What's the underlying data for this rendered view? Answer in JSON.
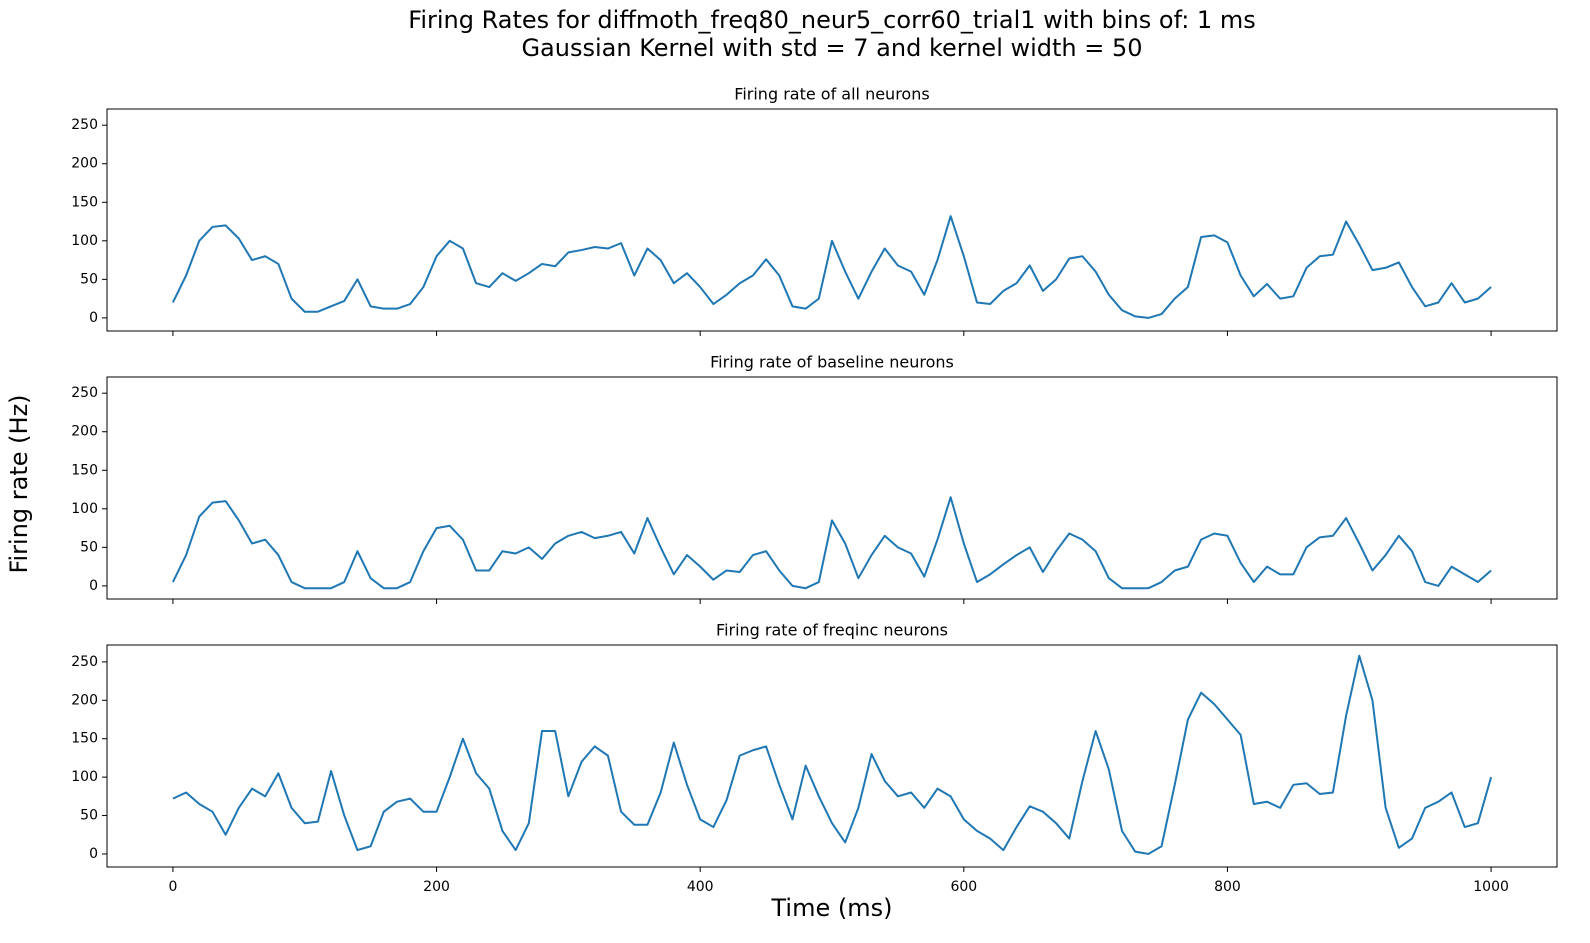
{
  "title": "Firing Rates for diffmoth_freq80_neur5_corr60_trial1 with bins of: 1 ms",
  "subtitle": "Gaussian Kernel with std = 7 and kernel width = 50",
  "xlabel": "Time (ms)",
  "ylabel": "Firing rate (Hz)",
  "chart_data": [
    {
      "type": "line",
      "title": "Firing rate of all neurons",
      "color": "#1f77b4",
      "x": [
        0,
        10,
        20,
        30,
        40,
        50,
        60,
        70,
        80,
        90,
        100,
        110,
        120,
        130,
        140,
        150,
        160,
        170,
        180,
        190,
        200,
        210,
        220,
        230,
        240,
        250,
        260,
        270,
        280,
        290,
        300,
        310,
        320,
        330,
        340,
        350,
        360,
        370,
        380,
        390,
        400,
        410,
        420,
        430,
        440,
        450,
        460,
        470,
        480,
        490,
        500,
        510,
        520,
        530,
        540,
        550,
        560,
        570,
        580,
        590,
        600,
        610,
        620,
        630,
        640,
        650,
        660,
        670,
        680,
        690,
        700,
        710,
        720,
        730,
        740,
        750,
        760,
        770,
        780,
        790,
        800,
        810,
        820,
        830,
        840,
        850,
        860,
        870,
        880,
        890,
        900,
        910,
        920,
        930,
        940,
        950,
        960,
        970,
        980,
        990,
        1000
      ],
      "values": [
        20,
        55,
        100,
        118,
        120,
        103,
        75,
        80,
        70,
        25,
        8,
        8,
        15,
        22,
        50,
        15,
        12,
        12,
        18,
        40,
        80,
        100,
        90,
        45,
        40,
        58,
        48,
        58,
        70,
        67,
        85,
        88,
        92,
        90,
        97,
        55,
        90,
        75,
        45,
        58,
        40,
        18,
        30,
        45,
        55,
        76,
        55,
        15,
        12,
        25,
        100,
        60,
        25,
        60,
        90,
        68,
        60,
        30,
        75,
        132,
        80,
        20,
        18,
        35,
        45,
        68,
        35,
        50,
        77,
        80,
        60,
        30,
        10,
        2,
        0,
        5,
        25,
        40,
        105,
        107,
        98,
        55,
        28,
        44,
        25,
        28,
        65,
        80,
        82,
        125,
        95,
        62,
        65,
        72,
        40,
        15,
        20,
        45,
        20,
        25,
        40
      ],
      "xlim": [
        -50,
        1050
      ],
      "ylim": [
        -17,
        271
      ],
      "xticks": [
        0,
        200,
        400,
        600,
        800,
        1000
      ],
      "yticks": [
        0,
        50,
        100,
        150,
        200,
        250
      ]
    },
    {
      "type": "line",
      "title": "Firing rate of baseline neurons",
      "color": "#1f77b4",
      "x": [
        0,
        10,
        20,
        30,
        40,
        50,
        60,
        70,
        80,
        90,
        100,
        110,
        120,
        130,
        140,
        150,
        160,
        170,
        180,
        190,
        200,
        210,
        220,
        230,
        240,
        250,
        260,
        270,
        280,
        290,
        300,
        310,
        320,
        330,
        340,
        350,
        360,
        370,
        380,
        390,
        400,
        410,
        420,
        430,
        440,
        450,
        460,
        470,
        480,
        490,
        500,
        510,
        520,
        530,
        540,
        550,
        560,
        570,
        580,
        590,
        600,
        610,
        620,
        630,
        640,
        650,
        660,
        670,
        680,
        690,
        700,
        710,
        720,
        730,
        740,
        750,
        760,
        770,
        780,
        790,
        800,
        810,
        820,
        830,
        840,
        850,
        860,
        870,
        880,
        890,
        900,
        910,
        920,
        930,
        940,
        950,
        960,
        970,
        980,
        990,
        1000
      ],
      "values": [
        5,
        40,
        90,
        108,
        110,
        85,
        55,
        60,
        40,
        5,
        -3,
        -3,
        -3,
        5,
        45,
        10,
        -3,
        -3,
        5,
        45,
        75,
        78,
        60,
        20,
        20,
        45,
        42,
        50,
        35,
        55,
        65,
        70,
        62,
        65,
        70,
        42,
        88,
        50,
        15,
        40,
        25,
        8,
        20,
        18,
        40,
        45,
        20,
        0,
        -3,
        5,
        85,
        55,
        10,
        40,
        65,
        50,
        42,
        12,
        60,
        115,
        55,
        5,
        15,
        28,
        40,
        50,
        18,
        45,
        68,
        60,
        45,
        10,
        -3,
        -3,
        -3,
        5,
        20,
        25,
        60,
        68,
        65,
        30,
        5,
        25,
        15,
        15,
        50,
        63,
        65,
        88,
        55,
        20,
        40,
        65,
        45,
        5,
        0,
        25,
        15,
        5,
        20
      ],
      "xlim": [
        -50,
        1050
      ],
      "ylim": [
        -17,
        271
      ],
      "xticks": [
        0,
        200,
        400,
        600,
        800,
        1000
      ],
      "yticks": [
        0,
        50,
        100,
        150,
        200,
        250
      ]
    },
    {
      "type": "line",
      "title": "Firing rate of freqinc neurons",
      "color": "#1f77b4",
      "x": [
        0,
        10,
        20,
        30,
        40,
        50,
        60,
        70,
        80,
        90,
        100,
        110,
        120,
        130,
        140,
        150,
        160,
        170,
        180,
        190,
        200,
        210,
        220,
        230,
        240,
        250,
        260,
        270,
        280,
        290,
        300,
        310,
        320,
        330,
        340,
        350,
        360,
        370,
        380,
        390,
        400,
        410,
        420,
        430,
        440,
        450,
        460,
        470,
        480,
        490,
        500,
        510,
        520,
        530,
        540,
        550,
        560,
        570,
        580,
        590,
        600,
        610,
        620,
        630,
        640,
        650,
        660,
        670,
        680,
        690,
        700,
        710,
        720,
        730,
        740,
        750,
        760,
        770,
        780,
        790,
        800,
        810,
        820,
        830,
        840,
        850,
        860,
        870,
        880,
        890,
        900,
        910,
        920,
        930,
        940,
        950,
        960,
        970,
        980,
        990,
        1000
      ],
      "values": [
        72,
        80,
        65,
        55,
        25,
        60,
        85,
        75,
        105,
        60,
        40,
        42,
        108,
        50,
        5,
        10,
        55,
        68,
        72,
        55,
        55,
        100,
        150,
        105,
        85,
        30,
        5,
        40,
        160,
        160,
        75,
        120,
        140,
        128,
        55,
        38,
        38,
        80,
        145,
        90,
        45,
        35,
        70,
        128,
        135,
        140,
        90,
        45,
        115,
        75,
        40,
        15,
        60,
        130,
        95,
        75,
        80,
        60,
        85,
        75,
        45,
        30,
        20,
        5,
        35,
        62,
        55,
        40,
        20,
        95,
        160,
        110,
        30,
        3,
        0,
        10,
        90,
        175,
        210,
        195,
        175,
        155,
        65,
        68,
        60,
        90,
        92,
        78,
        80,
        180,
        258,
        200,
        60,
        8,
        20,
        60,
        68,
        80,
        35,
        40,
        100
      ],
      "xlim": [
        -50,
        1050
      ],
      "ylim": [
        -17,
        272
      ],
      "xticks": [
        0,
        200,
        400,
        600,
        800,
        1000
      ],
      "yticks": [
        0,
        50,
        100,
        150,
        200,
        250
      ]
    }
  ]
}
